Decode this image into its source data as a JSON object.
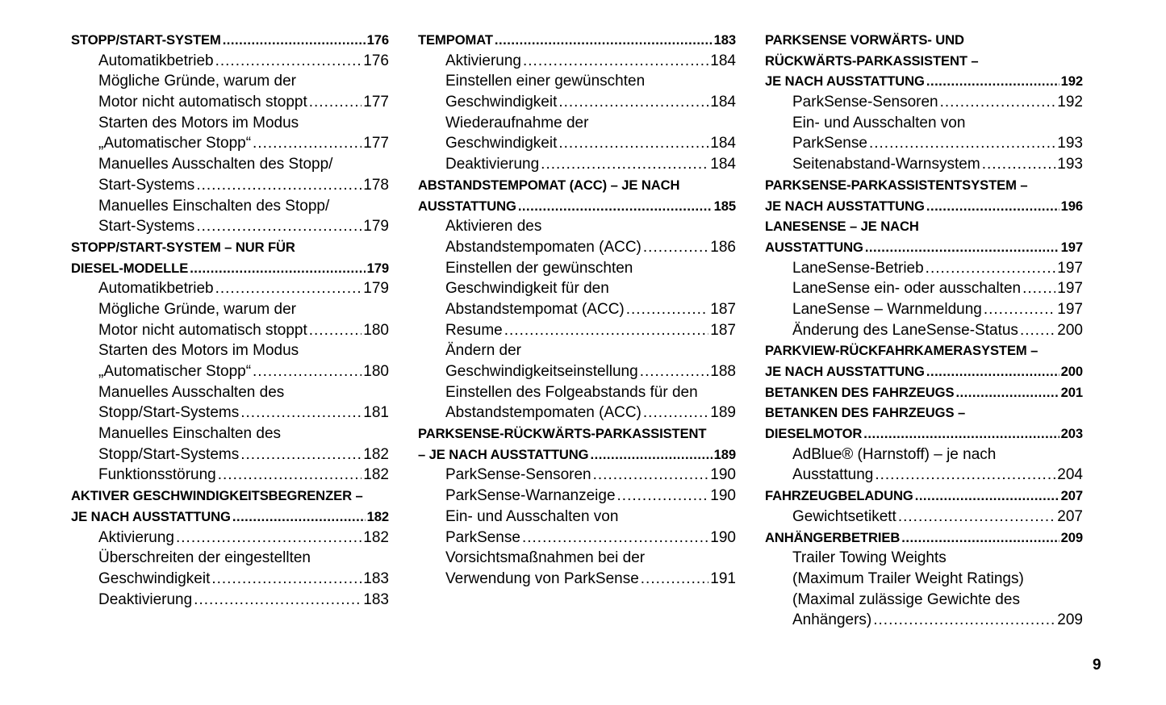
{
  "columns": [
    [
      {
        "type": "h",
        "lines": [
          "STOPP/START-SYSTEM"
        ],
        "page": "176"
      },
      {
        "type": "s",
        "lines": [
          "Automatikbetrieb"
        ],
        "page": "176"
      },
      {
        "type": "s",
        "lines": [
          "Mögliche Gründe, warum der",
          "Motor nicht automatisch stoppt"
        ],
        "page": "177"
      },
      {
        "type": "s",
        "lines": [
          "Starten des Motors im Modus",
          "„Automatischer Stopp“"
        ],
        "page": "177"
      },
      {
        "type": "s",
        "lines": [
          "Manuelles Ausschalten des Stopp/",
          "Start-Systems"
        ],
        "page": "178"
      },
      {
        "type": "s",
        "lines": [
          "Manuelles Einschalten des Stopp/",
          "Start-Systems"
        ],
        "page": "179"
      },
      {
        "type": "h",
        "lines": [
          "STOPP/START-SYSTEM – NUR FÜR",
          "DIESEL-MODELLE"
        ],
        "page": "179"
      },
      {
        "type": "s",
        "lines": [
          "Automatikbetrieb"
        ],
        "page": "179"
      },
      {
        "type": "s",
        "lines": [
          "Mögliche Gründe, warum der",
          "Motor nicht automatisch stoppt"
        ],
        "page": "180"
      },
      {
        "type": "s",
        "lines": [
          "Starten des Motors im Modus",
          "„Automatischer Stopp“"
        ],
        "page": "180"
      },
      {
        "type": "s",
        "lines": [
          "Manuelles Ausschalten des",
          "Stopp/Start-Systems"
        ],
        "page": "181"
      },
      {
        "type": "s",
        "lines": [
          "Manuelles Einschalten des",
          "Stopp/Start-Systems"
        ],
        "page": "182"
      },
      {
        "type": "s",
        "lines": [
          "Funktionsstörung"
        ],
        "page": "182"
      },
      {
        "type": "h",
        "lines": [
          "AKTIVER GESCHWINDIGKEITSBEGRENZER –",
          "JE NACH AUSSTATTUNG"
        ],
        "page": "182"
      },
      {
        "type": "s",
        "lines": [
          "Aktivierung"
        ],
        "page": "182"
      },
      {
        "type": "s",
        "lines": [
          "Überschreiten der eingestellten",
          "Geschwindigkeit"
        ],
        "page": "183"
      },
      {
        "type": "s",
        "lines": [
          "Deaktivierung"
        ],
        "page": "183"
      }
    ],
    [
      {
        "type": "h",
        "lines": [
          "TEMPOMAT"
        ],
        "page": "183"
      },
      {
        "type": "s",
        "lines": [
          "Aktivierung"
        ],
        "page": "184"
      },
      {
        "type": "s",
        "lines": [
          "Einstellen einer gewünschten",
          "Geschwindigkeit"
        ],
        "page": "184"
      },
      {
        "type": "s",
        "lines": [
          "Wiederaufnahme der",
          "Geschwindigkeit"
        ],
        "page": "184"
      },
      {
        "type": "s",
        "lines": [
          "Deaktivierung"
        ],
        "page": "184"
      },
      {
        "type": "h",
        "lines": [
          "ABSTANDSTEMPOMAT (ACC) – JE NACH",
          "AUSSTATTUNG"
        ],
        "page": "185"
      },
      {
        "type": "s",
        "lines": [
          "Aktivieren des",
          "Abstandstempomaten (ACC)"
        ],
        "page": "186"
      },
      {
        "type": "s",
        "lines": [
          "Einstellen der gewünschten",
          "Geschwindigkeit für den",
          "Abstandstempomat (ACC)"
        ],
        "page": "187"
      },
      {
        "type": "s",
        "lines": [
          "Resume"
        ],
        "page": "187"
      },
      {
        "type": "s",
        "lines": [
          "Ändern der",
          "Geschwindigkeitseinstellung"
        ],
        "page": "188"
      },
      {
        "type": "s",
        "lines": [
          "Einstellen des Folgeabstands für den",
          "Abstandstempomaten (ACC)"
        ],
        "page": "189"
      },
      {
        "type": "h",
        "lines": [
          "PARKSENSE-RÜCKWÄRTS-PARKASSISTENT",
          "– JE NACH AUSSTATTUNG"
        ],
        "page": "189"
      },
      {
        "type": "s",
        "lines": [
          "ParkSense-Sensoren"
        ],
        "page": "190"
      },
      {
        "type": "s",
        "lines": [
          "ParkSense-Warnanzeige"
        ],
        "page": "190"
      },
      {
        "type": "s",
        "lines": [
          "Ein- und Ausschalten von",
          "ParkSense"
        ],
        "page": "190"
      },
      {
        "type": "s",
        "lines": [
          "Vorsichtsmaßnahmen bei der",
          "Verwendung von ParkSense"
        ],
        "page": "191"
      }
    ],
    [
      {
        "type": "h",
        "lines": [
          "PARKSENSE VORWÄRTS- UND",
          "RÜCKWÄRTS-PARKASSISTENT –",
          "JE NACH AUSSTATTUNG"
        ],
        "page": "192"
      },
      {
        "type": "s",
        "lines": [
          "ParkSense-Sensoren"
        ],
        "page": "192"
      },
      {
        "type": "s",
        "lines": [
          "Ein- und Ausschalten von",
          "ParkSense"
        ],
        "page": "193"
      },
      {
        "type": "s",
        "lines": [
          "Seitenabstand-Warnsystem"
        ],
        "page": "193"
      },
      {
        "type": "h",
        "lines": [
          "PARKSENSE-PARKASSISTENTSYSTEM –",
          "JE NACH AUSSTATTUNG"
        ],
        "page": "196"
      },
      {
        "type": "h",
        "lines": [
          "LANESENSE – JE NACH",
          "AUSSTATTUNG"
        ],
        "page": "197"
      },
      {
        "type": "s",
        "lines": [
          "LaneSense-Betrieb"
        ],
        "page": "197"
      },
      {
        "type": "s",
        "lines": [
          "LaneSense ein- oder ausschalten"
        ],
        "page": "197"
      },
      {
        "type": "s",
        "lines": [
          "LaneSense – Warnmeldung"
        ],
        "page": "197"
      },
      {
        "type": "s",
        "lines": [
          "Änderung des LaneSense-Status"
        ],
        "page": "200"
      },
      {
        "type": "h",
        "lines": [
          "PARKVIEW-RÜCKFAHRKAMERASYSTEM –",
          "JE NACH AUSSTATTUNG"
        ],
        "page": "200"
      },
      {
        "type": "h",
        "lines": [
          "BETANKEN DES FAHRZEUGS"
        ],
        "page": "201"
      },
      {
        "type": "h",
        "lines": [
          "BETANKEN DES FAHRZEUGS –",
          "DIESELMOTOR"
        ],
        "page": "203"
      },
      {
        "type": "s",
        "lines": [
          "AdBlue® (Harnstoff) – je nach",
          "Ausstattung"
        ],
        "page": "204"
      },
      {
        "type": "h",
        "lines": [
          "FAHRZEUGBELADUNG"
        ],
        "page": "207"
      },
      {
        "type": "s",
        "lines": [
          "Gewichtsetikett"
        ],
        "page": "207"
      },
      {
        "type": "h",
        "lines": [
          "ANHÄNGERBETRIEB"
        ],
        "page": "209"
      },
      {
        "type": "s",
        "lines": [
          "Trailer Towing Weights",
          "(Maximum Trailer Weight Ratings)",
          "(Maximal zulässige Gewichte des",
          "Anhängers)"
        ],
        "page": "209"
      }
    ]
  ],
  "page_number": "9"
}
